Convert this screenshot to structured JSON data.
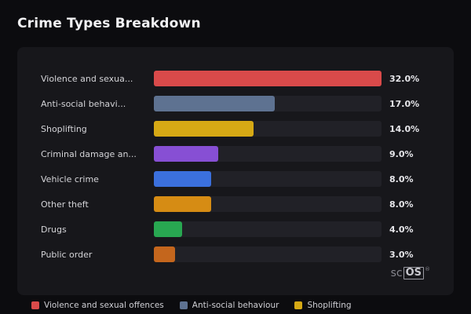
{
  "page": {
    "title": "Crime Types Breakdown"
  },
  "chart_data": {
    "type": "bar",
    "orientation": "horizontal",
    "title": "Crime Types Breakdown",
    "categories": [
      "Violence and sexual offences",
      "Anti-social behaviour",
      "Shoplifting",
      "Criminal damage an...",
      "Vehicle crime",
      "Other theft",
      "Drugs",
      "Public order"
    ],
    "display_labels": [
      "Violence and sexua...",
      "Anti-social behavi...",
      "Shoplifting",
      "Criminal damage an...",
      "Vehicle crime",
      "Other theft",
      "Drugs",
      "Public order"
    ],
    "values": [
      32.0,
      17.0,
      14.0,
      9.0,
      8.0,
      8.0,
      4.0,
      3.0
    ],
    "value_labels": [
      "32.0%",
      "17.0%",
      "14.0%",
      "9.0%",
      "8.0%",
      "8.0%",
      "4.0%",
      "3.0%"
    ],
    "colors": [
      "#d94a4a",
      "#5e7291",
      "#d6a915",
      "#874fd4",
      "#3b70dd",
      "#d68c14",
      "#28a751",
      "#c4661d"
    ],
    "xlim": [
      0,
      32
    ],
    "grid": false,
    "legend_position": "bottom",
    "legend": [
      {
        "label": "Violence and sexual offences",
        "color": "#d94a4a"
      },
      {
        "label": "Anti-social behaviour",
        "color": "#5e7291"
      },
      {
        "label": "Shoplifting",
        "color": "#d6a915"
      }
    ]
  },
  "watermark": {
    "prefix": "sc",
    "box": "OS",
    "registered": "®"
  }
}
